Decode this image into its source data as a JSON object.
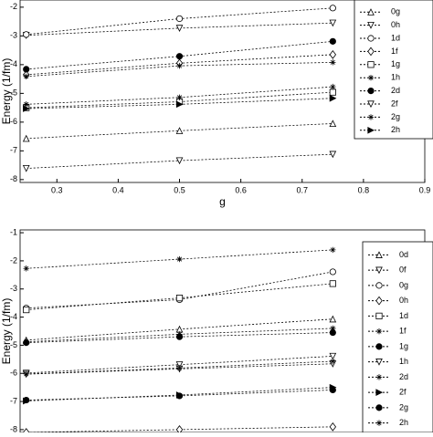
{
  "chart_data": [
    {
      "type": "line",
      "x_label": "g",
      "y_label": "Energy (1/fm)",
      "x": [
        0.25,
        0.5,
        0.75
      ],
      "color": "#000000",
      "xlim": [
        0.24,
        0.9
      ],
      "xticks": [
        0.3,
        0.4,
        0.5,
        0.6,
        0.7,
        0.8,
        0.9
      ],
      "ylim": [
        -8.1,
        -1.75
      ],
      "yticks": [
        -2,
        -3,
        -4,
        -5,
        -6,
        -7,
        -8
      ],
      "series": [
        {
          "name": "0g",
          "values": [
            -6.57,
            -6.3,
            -6.05
          ]
        },
        {
          "name": "0h",
          "values": [
            -2.98,
            -2.73,
            -2.55
          ]
        },
        {
          "name": "1d",
          "values": [
            -2.95,
            -2.4,
            -2.03
          ]
        },
        {
          "name": "1f",
          "values": [
            -4.35,
            -3.95,
            -3.65
          ]
        },
        {
          "name": "1g",
          "values": [
            -5.5,
            -5.29,
            -4.96
          ]
        },
        {
          "name": "1h",
          "values": [
            -5.38,
            -5.14,
            -4.77
          ]
        },
        {
          "name": "2d",
          "values": [
            -4.16,
            -3.71,
            -3.19
          ]
        },
        {
          "name": "2f",
          "values": [
            -7.61,
            -7.34,
            -7.12
          ]
        },
        {
          "name": "2g",
          "values": [
            -4.41,
            -4.04,
            -3.92
          ]
        },
        {
          "name": "2h",
          "values": [
            -5.53,
            -5.38,
            -5.17
          ]
        }
      ]
    },
    {
      "type": "line",
      "y_label": "Energy (1/fm)",
      "x": [
        0.25,
        0.5,
        0.75
      ],
      "color": "#000000",
      "xlim": [
        0.24,
        0.9
      ],
      "ylim": [
        -8.1,
        -0.9
      ],
      "yticks": [
        -1,
        -2,
        -3,
        -4,
        -5,
        -6,
        -7,
        -8
      ],
      "series": [
        {
          "name": "0d",
          "values": [
            -4.82,
            -4.43,
            -4.07
          ]
        },
        {
          "name": "0f",
          "values": [
            -5.99,
            -5.69,
            -5.39
          ]
        },
        {
          "name": "0g",
          "values": [
            -3.68,
            -3.38,
            -2.39
          ]
        },
        {
          "name": "0h",
          "values": [
            -8.1,
            -8.0,
            -7.9
          ]
        },
        {
          "name": "1d",
          "values": [
            -3.74,
            -3.32,
            -2.81
          ]
        },
        {
          "name": "1f",
          "values": [
            -4.88,
            -4.61,
            -4.4
          ]
        },
        {
          "name": "1g",
          "values": [
            -4.91,
            -4.7,
            -4.55
          ]
        },
        {
          "name": "1h",
          "values": [
            -6.03,
            -5.84,
            -5.66
          ]
        },
        {
          "name": "2d",
          "values": [
            -6.02,
            -5.81,
            -5.57
          ]
        },
        {
          "name": "2f",
          "values": [
            -6.98,
            -6.77,
            -6.5
          ]
        },
        {
          "name": "2g",
          "values": [
            -6.95,
            -6.8,
            -6.59
          ]
        },
        {
          "name": "2h",
          "values": [
            -2.27,
            -1.94,
            -1.61
          ]
        }
      ]
    }
  ]
}
